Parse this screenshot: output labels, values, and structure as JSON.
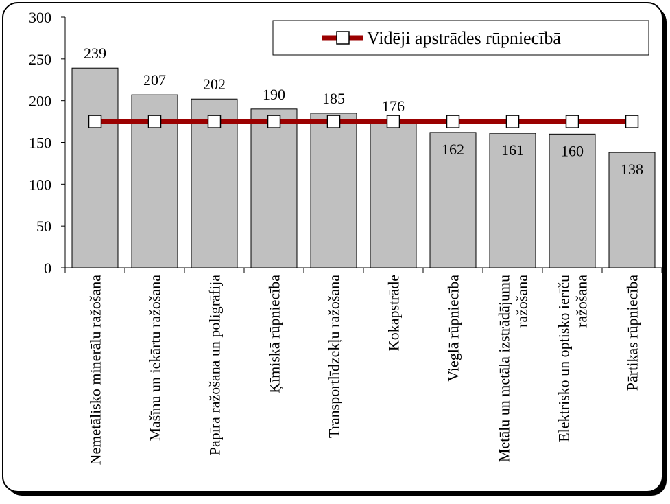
{
  "chart_data": {
    "type": "bar",
    "categories": [
      "Nemetālisko minerālu ražošana",
      "Mašīnu un iekārtu ražošana",
      "Papīra ražošana un poligrāfija",
      "Ķīmiskā rūpniecība",
      "Transportlīdzekļu ražošana",
      "Kokapstrāde",
      "Vieglā rūpniecība",
      "Metālu un metāla izstrādājumu\nražošana",
      "Elektrisko un optisko ierīču\nražošana",
      "Pārtikas rūpniecība"
    ],
    "series": [
      {
        "type": "bar",
        "color": "#c0c0c0",
        "values": [
          239,
          207,
          202,
          190,
          185,
          176,
          162,
          161,
          160,
          138
        ]
      },
      {
        "type": "line",
        "name": "Vidēji apstrādes rūpniecībā",
        "color": "#9b0000",
        "values": [
          175,
          175,
          175,
          175,
          175,
          175,
          175,
          175,
          175,
          175
        ]
      }
    ],
    "ylim": [
      0,
      300
    ],
    "yticks": [
      0,
      50,
      100,
      150,
      200,
      250,
      300
    ],
    "legend": "top-right"
  }
}
